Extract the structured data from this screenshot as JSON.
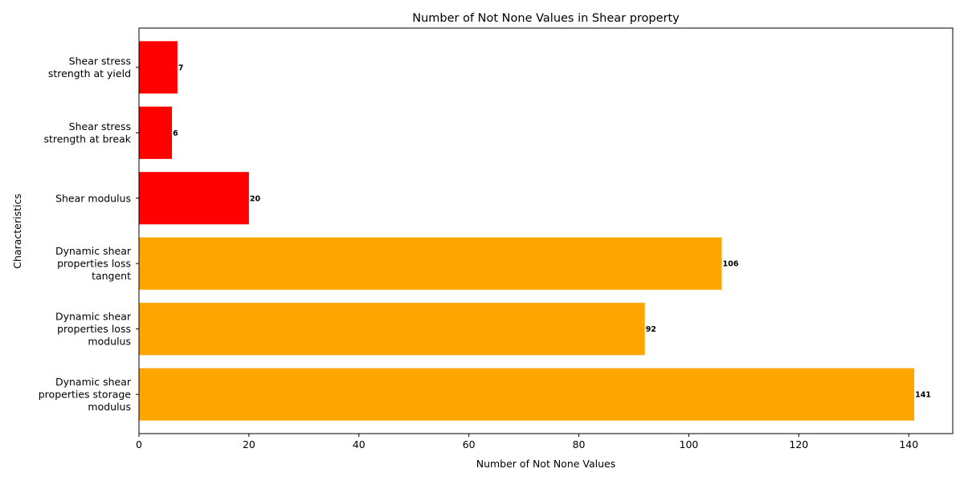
{
  "chart_data": {
    "type": "bar",
    "orientation": "horizontal",
    "title": "Number of Not None Values in Shear property",
    "xlabel": "Number of Not None Values",
    "ylabel": "Characteristics",
    "xlim": [
      0,
      148
    ],
    "xticks": [
      0,
      20,
      40,
      60,
      80,
      100,
      120,
      140
    ],
    "grid": false,
    "categories": [
      [
        "Dynamic shear",
        "properties storage",
        "modulus"
      ],
      [
        "Dynamic shear",
        "properties loss",
        "modulus"
      ],
      [
        "Dynamic shear",
        "properties loss",
        "tangent"
      ],
      [
        "Shear modulus"
      ],
      [
        "Shear stress",
        "strength at break"
      ],
      [
        "Shear stress",
        "strength at yield"
      ]
    ],
    "values": [
      141,
      92,
      106,
      20,
      6,
      7
    ],
    "colors": [
      "#FFA500",
      "#FFA500",
      "#FFA500",
      "#FF0000",
      "#FF0000",
      "#FF0000"
    ]
  }
}
